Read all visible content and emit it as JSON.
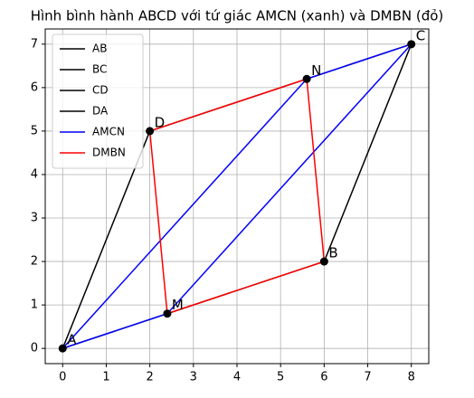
{
  "chart_data": {
    "type": "line",
    "title": "Hình bình hành ABCD với tứ giác AMCN (xanh) và DMBN (đỏ)",
    "series": [
      {
        "name": "AB",
        "color": "#000000",
        "x": [
          0,
          6
        ],
        "values": [
          0,
          2
        ]
      },
      {
        "name": "BC",
        "color": "#000000",
        "x": [
          6,
          8
        ],
        "values": [
          2,
          7
        ]
      },
      {
        "name": "CD",
        "color": "#000000",
        "x": [
          8,
          2
        ],
        "values": [
          7,
          5
        ]
      },
      {
        "name": "DA",
        "color": "#000000",
        "x": [
          2,
          0
        ],
        "values": [
          5,
          0
        ]
      },
      {
        "name": "AMCN",
        "color": "#0000ff",
        "x": [
          0,
          2.4,
          8,
          5.6,
          0
        ],
        "values": [
          0,
          0.8,
          7,
          6.2,
          0
        ]
      },
      {
        "name": "DMBN",
        "color": "#ff0000",
        "x": [
          2,
          2.4,
          6,
          5.6,
          2
        ],
        "values": [
          5,
          0.8,
          2,
          6.2,
          5
        ]
      }
    ],
    "points": [
      {
        "label": "A",
        "x": 0,
        "y": 0
      },
      {
        "label": "B",
        "x": 6,
        "y": 2
      },
      {
        "label": "C",
        "x": 8,
        "y": 7
      },
      {
        "label": "D",
        "x": 2,
        "y": 5
      },
      {
        "label": "M",
        "x": 2.4,
        "y": 0.8
      },
      {
        "label": "N",
        "x": 5.6,
        "y": 6.2
      }
    ],
    "point_color": "#000000",
    "xlim": [
      -0.4,
      8.4
    ],
    "ylim": [
      -0.35,
      7.35
    ],
    "xticks": [
      0,
      1,
      2,
      3,
      4,
      5,
      6,
      7,
      8
    ],
    "yticks": [
      0,
      1,
      2,
      3,
      4,
      5,
      6,
      7
    ],
    "grid": true,
    "legend": "upper left"
  }
}
